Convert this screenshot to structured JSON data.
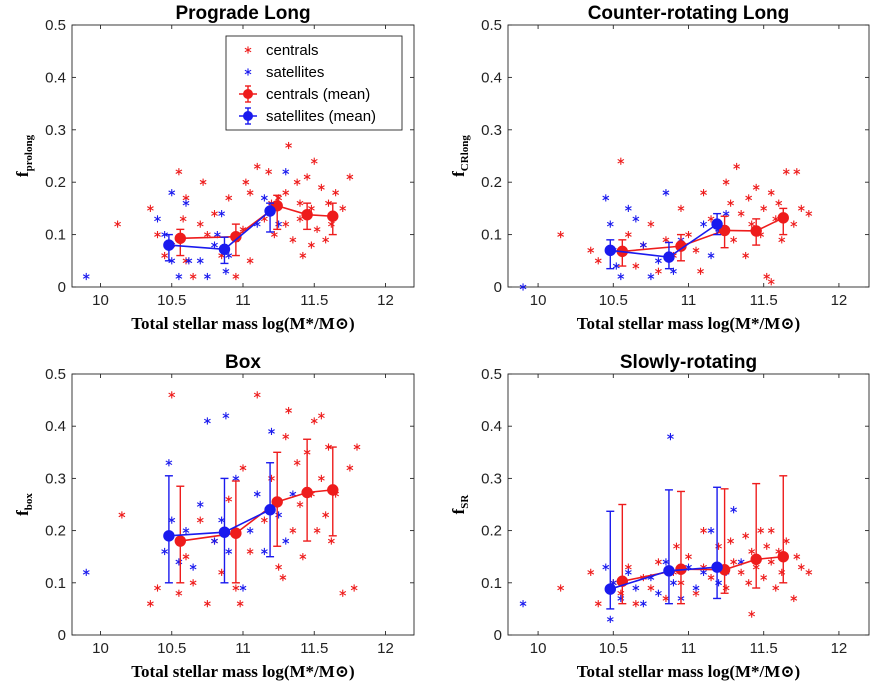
{
  "colors": {
    "centrals": "#ee1c1c",
    "satellites": "#1a1aee"
  },
  "chart_data": [
    {
      "type": "scatter",
      "title": "Prograde Long",
      "xlabel": "Total stellar mass log(M*/M⊙)",
      "ylabel_main": "f",
      "ylabel_sub": "prolong",
      "xlim": [
        9.8,
        12.2
      ],
      "ylim": [
        0,
        0.5
      ],
      "xticks": [
        "10",
        "10.5",
        "11",
        "11.5",
        "12"
      ],
      "yticks": [
        "0",
        "0.1",
        "0.2",
        "0.3",
        "0.4",
        "0.5"
      ],
      "legend": {
        "position": "top-right",
        "entries": [
          "centrals",
          "satellites",
          "centrals (mean)",
          "satellites (mean)"
        ]
      },
      "centrals_scatter": [
        [
          10.12,
          0.12
        ],
        [
          10.35,
          0.15
        ],
        [
          10.4,
          0.1
        ],
        [
          10.45,
          0.06
        ],
        [
          10.5,
          0.08
        ],
        [
          10.55,
          0.22
        ],
        [
          10.58,
          0.13
        ],
        [
          10.6,
          0.05
        ],
        [
          10.65,
          0.02
        ],
        [
          10.7,
          0.12
        ],
        [
          10.75,
          0.1
        ],
        [
          10.8,
          0.14
        ],
        [
          10.85,
          0.06
        ],
        [
          10.9,
          0.17
        ],
        [
          10.95,
          0.09
        ],
        [
          11.0,
          0.11
        ],
        [
          11.02,
          0.2
        ],
        [
          11.05,
          0.05
        ],
        [
          11.1,
          0.23
        ],
        [
          11.15,
          0.13
        ],
        [
          11.2,
          0.16
        ],
        [
          11.22,
          0.1
        ],
        [
          11.25,
          0.17
        ],
        [
          11.3,
          0.12
        ],
        [
          11.32,
          0.27
        ],
        [
          11.35,
          0.09
        ],
        [
          11.38,
          0.2
        ],
        [
          11.4,
          0.16
        ],
        [
          11.42,
          0.06
        ],
        [
          11.45,
          0.21
        ],
        [
          11.48,
          0.15
        ],
        [
          11.5,
          0.24
        ],
        [
          11.52,
          0.11
        ],
        [
          11.55,
          0.19
        ],
        [
          11.58,
          0.09
        ],
        [
          11.6,
          0.16
        ],
        [
          11.62,
          0.12
        ],
        [
          11.65,
          0.18
        ],
        [
          11.7,
          0.15
        ],
        [
          11.75,
          0.21
        ],
        [
          11.3,
          0.18
        ],
        [
          11.18,
          0.22
        ],
        [
          11.05,
          0.18
        ],
        [
          10.6,
          0.17
        ],
        [
          10.72,
          0.2
        ],
        [
          10.95,
          0.02
        ],
        [
          11.48,
          0.08
        ],
        [
          11.4,
          0.13
        ]
      ],
      "satellites_scatter": [
        [
          9.9,
          0.02
        ],
        [
          10.4,
          0.13
        ],
        [
          10.45,
          0.1
        ],
        [
          10.5,
          0.18
        ],
        [
          10.55,
          0.02
        ],
        [
          10.6,
          0.16
        ],
        [
          10.62,
          0.05
        ],
        [
          10.7,
          0.05
        ],
        [
          10.75,
          0.02
        ],
        [
          10.8,
          0.08
        ],
        [
          10.85,
          0.14
        ],
        [
          10.88,
          0.03
        ],
        [
          10.9,
          0.06
        ],
        [
          10.95,
          0.09
        ],
        [
          11.1,
          0.12
        ],
        [
          11.15,
          0.17
        ],
        [
          11.2,
          0.15
        ],
        [
          11.25,
          0.12
        ],
        [
          11.3,
          0.22
        ],
        [
          10.5,
          0.05
        ],
        [
          10.82,
          0.1
        ]
      ],
      "centrals_mean": [
        {
          "x": 10.56,
          "y": 0.093,
          "lo": 0.06,
          "hi": 0.11
        },
        {
          "x": 10.95,
          "y": 0.096,
          "lo": 0.06,
          "hi": 0.12
        },
        {
          "x": 11.24,
          "y": 0.155,
          "lo": 0.11,
          "hi": 0.175
        },
        {
          "x": 11.45,
          "y": 0.138,
          "lo": 0.11,
          "hi": 0.16
        },
        {
          "x": 11.63,
          "y": 0.135,
          "lo": 0.1,
          "hi": 0.16
        }
      ],
      "satellites_mean": [
        {
          "x": 10.48,
          "y": 0.08,
          "lo": 0.05,
          "hi": 0.1
        },
        {
          "x": 10.87,
          "y": 0.072,
          "lo": 0.045,
          "hi": 0.095
        },
        {
          "x": 11.19,
          "y": 0.145,
          "lo": 0.105,
          "hi": 0.16
        }
      ]
    },
    {
      "type": "scatter",
      "title": "Counter-rotating Long",
      "xlabel": "Total stellar mass log(M*/M⊙)",
      "ylabel_main": "f",
      "ylabel_sub": "CRlong",
      "xlim": [
        9.8,
        12.2
      ],
      "ylim": [
        0,
        0.5
      ],
      "xticks": [
        "10",
        "10.5",
        "11",
        "11.5",
        "12"
      ],
      "yticks": [
        "0",
        "0.1",
        "0.2",
        "0.3",
        "0.4",
        "0.5"
      ],
      "centrals_scatter": [
        [
          10.15,
          0.1
        ],
        [
          10.35,
          0.07
        ],
        [
          10.4,
          0.05
        ],
        [
          10.55,
          0.24
        ],
        [
          10.6,
          0.1
        ],
        [
          10.65,
          0.04
        ],
        [
          10.7,
          0.08
        ],
        [
          10.75,
          0.12
        ],
        [
          10.8,
          0.03
        ],
        [
          10.85,
          0.09
        ],
        [
          10.9,
          0.06
        ],
        [
          10.95,
          0.15
        ],
        [
          11.0,
          0.1
        ],
        [
          11.05,
          0.07
        ],
        [
          11.1,
          0.18
        ],
        [
          11.15,
          0.13
        ],
        [
          11.2,
          0.11
        ],
        [
          11.25,
          0.2
        ],
        [
          11.3,
          0.09
        ],
        [
          11.32,
          0.23
        ],
        [
          11.35,
          0.14
        ],
        [
          11.38,
          0.06
        ],
        [
          11.4,
          0.17
        ],
        [
          11.42,
          0.12
        ],
        [
          11.45,
          0.19
        ],
        [
          11.48,
          0.1
        ],
        [
          11.5,
          0.15
        ],
        [
          11.52,
          0.02
        ],
        [
          11.55,
          0.18
        ],
        [
          11.58,
          0.13
        ],
        [
          11.6,
          0.16
        ],
        [
          11.62,
          0.09
        ],
        [
          11.65,
          0.22
        ],
        [
          11.7,
          0.12
        ],
        [
          11.72,
          0.22
        ],
        [
          11.75,
          0.15
        ],
        [
          11.8,
          0.14
        ],
        [
          11.55,
          0.01
        ],
        [
          11.28,
          0.16
        ],
        [
          11.08,
          0.03
        ]
      ],
      "satellites_scatter": [
        [
          9.9,
          0.0
        ],
        [
          10.45,
          0.17
        ],
        [
          10.48,
          0.12
        ],
        [
          10.5,
          0.07
        ],
        [
          10.55,
          0.02
        ],
        [
          10.6,
          0.15
        ],
        [
          10.65,
          0.13
        ],
        [
          10.7,
          0.08
        ],
        [
          10.75,
          0.02
        ],
        [
          10.8,
          0.05
        ],
        [
          10.85,
          0.18
        ],
        [
          10.9,
          0.03
        ],
        [
          10.95,
          0.09
        ],
        [
          11.1,
          0.12
        ],
        [
          11.15,
          0.06
        ],
        [
          11.2,
          0.11
        ],
        [
          11.25,
          0.14
        ],
        [
          10.52,
          0.04
        ]
      ],
      "centrals_mean": [
        {
          "x": 10.56,
          "y": 0.068,
          "lo": 0.04,
          "hi": 0.09
        },
        {
          "x": 10.95,
          "y": 0.078,
          "lo": 0.05,
          "hi": 0.1
        },
        {
          "x": 11.24,
          "y": 0.108,
          "lo": 0.075,
          "hi": 0.135
        },
        {
          "x": 11.45,
          "y": 0.107,
          "lo": 0.08,
          "hi": 0.13
        },
        {
          "x": 11.63,
          "y": 0.132,
          "lo": 0.1,
          "hi": 0.15
        }
      ],
      "satellites_mean": [
        {
          "x": 10.48,
          "y": 0.07,
          "lo": 0.035,
          "hi": 0.09
        },
        {
          "x": 10.87,
          "y": 0.057,
          "lo": 0.035,
          "hi": 0.085
        },
        {
          "x": 11.19,
          "y": 0.12,
          "lo": 0.1,
          "hi": 0.14
        }
      ]
    },
    {
      "type": "scatter",
      "title": "Box",
      "xlabel": "Total stellar mass log(M*/M⊙)",
      "ylabel_main": "f",
      "ylabel_sub": "box",
      "xlim": [
        9.8,
        12.2
      ],
      "ylim": [
        0,
        0.5
      ],
      "xticks": [
        "10",
        "10.5",
        "11",
        "11.5",
        "12"
      ],
      "yticks": [
        "0",
        "0.1",
        "0.2",
        "0.3",
        "0.4",
        "0.5"
      ],
      "centrals_scatter": [
        [
          10.15,
          0.23
        ],
        [
          10.35,
          0.06
        ],
        [
          10.4,
          0.09
        ],
        [
          10.5,
          0.46
        ],
        [
          10.55,
          0.08
        ],
        [
          10.6,
          0.15
        ],
        [
          10.65,
          0.1
        ],
        [
          10.7,
          0.22
        ],
        [
          10.75,
          0.06
        ],
        [
          10.8,
          0.18
        ],
        [
          10.85,
          0.12
        ],
        [
          10.9,
          0.26
        ],
        [
          10.95,
          0.09
        ],
        [
          11.0,
          0.32
        ],
        [
          11.05,
          0.16
        ],
        [
          11.1,
          0.46
        ],
        [
          11.15,
          0.22
        ],
        [
          11.2,
          0.3
        ],
        [
          11.25,
          0.13
        ],
        [
          11.3,
          0.38
        ],
        [
          11.32,
          0.43
        ],
        [
          11.35,
          0.2
        ],
        [
          11.38,
          0.33
        ],
        [
          11.4,
          0.25
        ],
        [
          11.42,
          0.15
        ],
        [
          11.45,
          0.35
        ],
        [
          11.48,
          0.27
        ],
        [
          11.5,
          0.41
        ],
        [
          11.52,
          0.2
        ],
        [
          11.55,
          0.3
        ],
        [
          11.58,
          0.23
        ],
        [
          11.6,
          0.36
        ],
        [
          11.62,
          0.18
        ],
        [
          11.65,
          0.27
        ],
        [
          11.7,
          0.08
        ],
        [
          11.75,
          0.32
        ],
        [
          11.78,
          0.09
        ],
        [
          11.8,
          0.36
        ],
        [
          11.28,
          0.11
        ],
        [
          10.98,
          0.06
        ],
        [
          11.55,
          0.42
        ]
      ],
      "satellites_scatter": [
        [
          9.9,
          0.12
        ],
        [
          10.45,
          0.16
        ],
        [
          10.48,
          0.33
        ],
        [
          10.5,
          0.22
        ],
        [
          10.55,
          0.14
        ],
        [
          10.6,
          0.2
        ],
        [
          10.65,
          0.13
        ],
        [
          10.7,
          0.25
        ],
        [
          10.75,
          0.41
        ],
        [
          10.8,
          0.18
        ],
        [
          10.85,
          0.22
        ],
        [
          10.88,
          0.42
        ],
        [
          10.9,
          0.16
        ],
        [
          10.95,
          0.3
        ],
        [
          11.0,
          0.09
        ],
        [
          11.05,
          0.2
        ],
        [
          11.1,
          0.27
        ],
        [
          11.15,
          0.16
        ],
        [
          11.2,
          0.39
        ],
        [
          11.25,
          0.23
        ],
        [
          11.3,
          0.18
        ],
        [
          11.35,
          0.27
        ]
      ],
      "centrals_mean": [
        {
          "x": 10.56,
          "y": 0.18,
          "lo": 0.1,
          "hi": 0.285
        },
        {
          "x": 10.95,
          "y": 0.195,
          "lo": 0.1,
          "hi": 0.295
        },
        {
          "x": 11.24,
          "y": 0.255,
          "lo": 0.17,
          "hi": 0.35
        },
        {
          "x": 11.45,
          "y": 0.273,
          "lo": 0.18,
          "hi": 0.375
        },
        {
          "x": 11.63,
          "y": 0.278,
          "lo": 0.19,
          "hi": 0.36
        }
      ],
      "satellites_mean": [
        {
          "x": 10.48,
          "y": 0.19,
          "lo": 0.1,
          "hi": 0.305
        },
        {
          "x": 10.87,
          "y": 0.197,
          "lo": 0.1,
          "hi": 0.3
        },
        {
          "x": 11.19,
          "y": 0.24,
          "lo": 0.15,
          "hi": 0.33
        }
      ]
    },
    {
      "type": "scatter",
      "title": "Slowly-rotating",
      "xlabel": "Total stellar mass log(M*/M⊙)",
      "ylabel_main": "f",
      "ylabel_sub": "SR",
      "xlim": [
        9.8,
        12.2
      ],
      "ylim": [
        0,
        0.5
      ],
      "xticks": [
        "10",
        "10.5",
        "11",
        "11.5",
        "12"
      ],
      "yticks": [
        "0",
        "0.1",
        "0.2",
        "0.3",
        "0.4",
        "0.5"
      ],
      "centrals_scatter": [
        [
          10.15,
          0.09
        ],
        [
          10.35,
          0.12
        ],
        [
          10.4,
          0.06
        ],
        [
          10.5,
          0.1
        ],
        [
          10.55,
          0.08
        ],
        [
          10.6,
          0.13
        ],
        [
          10.65,
          0.06
        ],
        [
          10.7,
          0.11
        ],
        [
          10.75,
          0.09
        ],
        [
          10.8,
          0.14
        ],
        [
          10.85,
          0.07
        ],
        [
          10.9,
          0.12
        ],
        [
          10.95,
          0.1
        ],
        [
          11.0,
          0.15
        ],
        [
          11.05,
          0.08
        ],
        [
          11.1,
          0.13
        ],
        [
          11.15,
          0.11
        ],
        [
          11.2,
          0.17
        ],
        [
          11.25,
          0.09
        ],
        [
          11.3,
          0.14
        ],
        [
          11.35,
          0.12
        ],
        [
          11.38,
          0.19
        ],
        [
          11.4,
          0.1
        ],
        [
          11.42,
          0.16
        ],
        [
          11.45,
          0.13
        ],
        [
          11.48,
          0.2
        ],
        [
          11.5,
          0.11
        ],
        [
          11.52,
          0.17
        ],
        [
          11.55,
          0.14
        ],
        [
          11.58,
          0.09
        ],
        [
          11.6,
          0.16
        ],
        [
          11.62,
          0.12
        ],
        [
          11.65,
          0.18
        ],
        [
          11.7,
          0.07
        ],
        [
          11.72,
          0.15
        ],
        [
          11.75,
          0.13
        ],
        [
          11.8,
          0.12
        ],
        [
          11.28,
          0.18
        ],
        [
          11.1,
          0.2
        ],
        [
          10.92,
          0.17
        ],
        [
          11.55,
          0.2
        ],
        [
          11.42,
          0.04
        ]
      ],
      "satellites_scatter": [
        [
          9.9,
          0.06
        ],
        [
          10.45,
          0.13
        ],
        [
          10.48,
          0.03
        ],
        [
          10.5,
          0.1
        ],
        [
          10.55,
          0.07
        ],
        [
          10.6,
          0.12
        ],
        [
          10.65,
          0.09
        ],
        [
          10.7,
          0.06
        ],
        [
          10.75,
          0.11
        ],
        [
          10.8,
          0.08
        ],
        [
          10.85,
          0.14
        ],
        [
          10.88,
          0.38
        ],
        [
          10.9,
          0.1
        ],
        [
          10.95,
          0.07
        ],
        [
          11.0,
          0.13
        ],
        [
          11.05,
          0.09
        ],
        [
          11.1,
          0.12
        ],
        [
          11.15,
          0.2
        ],
        [
          11.2,
          0.1
        ],
        [
          11.25,
          0.12
        ],
        [
          11.3,
          0.24
        ],
        [
          11.35,
          0.14
        ]
      ],
      "centrals_mean": [
        {
          "x": 10.56,
          "y": 0.103,
          "lo": 0.06,
          "hi": 0.25
        },
        {
          "x": 10.95,
          "y": 0.126,
          "lo": 0.06,
          "hi": 0.275
        },
        {
          "x": 11.24,
          "y": 0.125,
          "lo": 0.08,
          "hi": 0.28
        },
        {
          "x": 11.45,
          "y": 0.145,
          "lo": 0.09,
          "hi": 0.29
        },
        {
          "x": 11.63,
          "y": 0.15,
          "lo": 0.1,
          "hi": 0.305
        }
      ],
      "satellites_mean": [
        {
          "x": 10.48,
          "y": 0.088,
          "lo": 0.05,
          "hi": 0.237
        },
        {
          "x": 10.87,
          "y": 0.123,
          "lo": 0.06,
          "hi": 0.278
        },
        {
          "x": 11.19,
          "y": 0.13,
          "lo": 0.07,
          "hi": 0.283
        }
      ]
    }
  ]
}
